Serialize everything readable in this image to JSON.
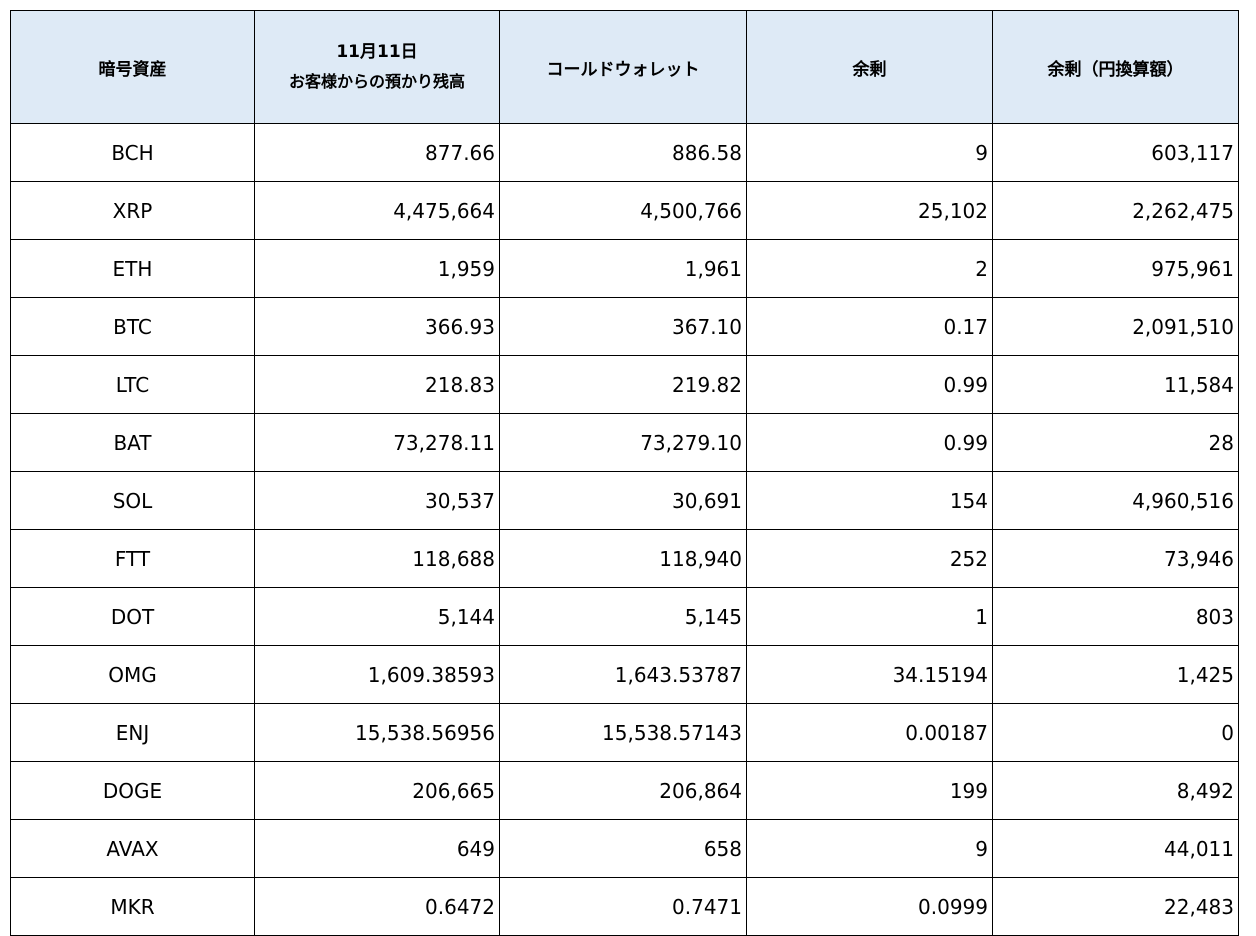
{
  "table": {
    "headers": {
      "asset": "暗号資産",
      "date_line1": "11月11日",
      "date_line2": "お客様からの預かり残高",
      "cold_wallet": "コールドウォレット",
      "surplus": "余剰",
      "surplus_jpy": "余剰（円換算額）"
    },
    "rows": [
      {
        "asset": "BCH",
        "customer": "877.66",
        "cold": "886.58",
        "surplus": "9",
        "surplus_jpy": "603,117"
      },
      {
        "asset": "XRP",
        "customer": "4,475,664",
        "cold": "4,500,766",
        "surplus": "25,102",
        "surplus_jpy": "2,262,475"
      },
      {
        "asset": "ETH",
        "customer": "1,959",
        "cold": "1,961",
        "surplus": "2",
        "surplus_jpy": "975,961"
      },
      {
        "asset": "BTC",
        "customer": "366.93",
        "cold": "367.10",
        "surplus": "0.17",
        "surplus_jpy": "2,091,510"
      },
      {
        "asset": "LTC",
        "customer": "218.83",
        "cold": "219.82",
        "surplus": "0.99",
        "surplus_jpy": "11,584"
      },
      {
        "asset": "BAT",
        "customer": "73,278.11",
        "cold": "73,279.10",
        "surplus": "0.99",
        "surplus_jpy": "28"
      },
      {
        "asset": "SOL",
        "customer": "30,537",
        "cold": "30,691",
        "surplus": "154",
        "surplus_jpy": "4,960,516"
      },
      {
        "asset": "FTT",
        "customer": "118,688",
        "cold": "118,940",
        "surplus": "252",
        "surplus_jpy": "73,946"
      },
      {
        "asset": "DOT",
        "customer": "5,144",
        "cold": "5,145",
        "surplus": "1",
        "surplus_jpy": "803"
      },
      {
        "asset": "OMG",
        "customer": "1,609.38593",
        "cold": "1,643.53787",
        "surplus": "34.15194",
        "surplus_jpy": "1,425"
      },
      {
        "asset": "ENJ",
        "customer": "15,538.56956",
        "cold": "15,538.57143",
        "surplus": "0.00187",
        "surplus_jpy": "0"
      },
      {
        "asset": "DOGE",
        "customer": "206,665",
        "cold": "206,864",
        "surplus": "199",
        "surplus_jpy": "8,492"
      },
      {
        "asset": "AVAX",
        "customer": "649",
        "cold": "658",
        "surplus": "9",
        "surplus_jpy": "44,011"
      },
      {
        "asset": "MKR",
        "customer": "0.6472",
        "cold": "0.7471",
        "surplus": "0.0999",
        "surplus_jpy": "22,483"
      }
    ]
  }
}
